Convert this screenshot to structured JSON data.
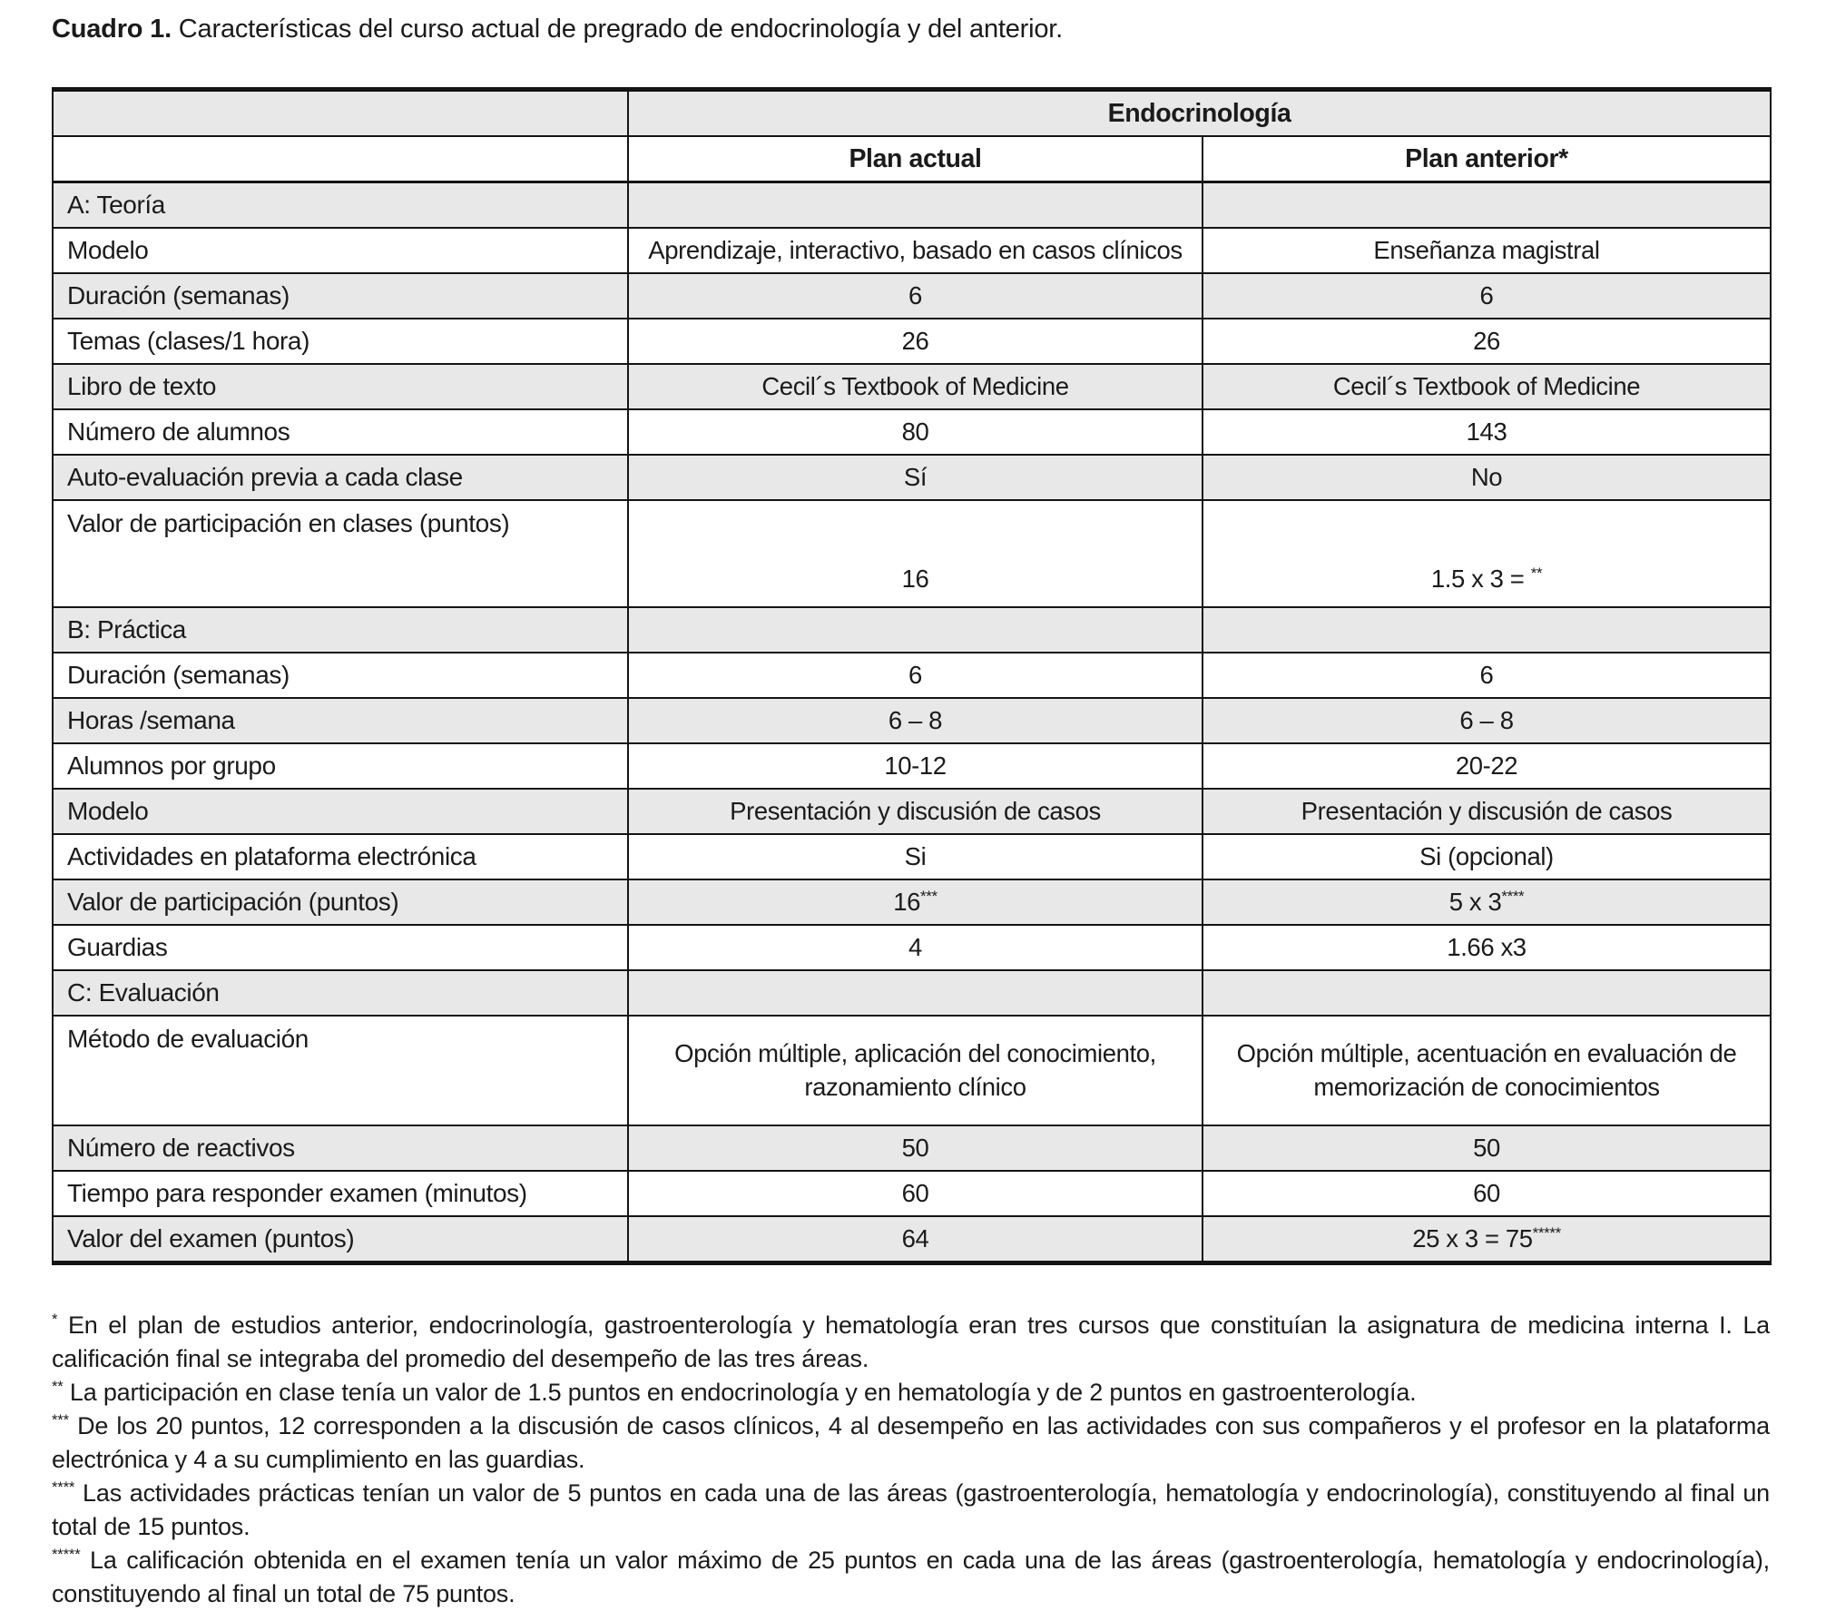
{
  "title": {
    "prefix": "Cuadro 1.",
    "text": " Características del curso actual de pregrado de endocrinología y del anterior."
  },
  "table": {
    "group_header": "Endocrinología",
    "columns": {
      "actual_label": "Plan actual",
      "anterior_label": "Plan anterior*"
    },
    "rows": [
      {
        "kind": "section",
        "label": "A: Teoría"
      },
      {
        "kind": "row",
        "label": "Modelo",
        "actual": {
          "text": "Aprendizaje, interactivo, basado en casos clínicos"
        },
        "anterior": {
          "text": "Enseñanza magistral"
        }
      },
      {
        "kind": "row",
        "label": "Duración (semanas)",
        "actual": {
          "text": "6"
        },
        "anterior": {
          "text": "6"
        }
      },
      {
        "kind": "row",
        "label": "Temas (clases/1 hora)",
        "actual": {
          "text": "26"
        },
        "anterior": {
          "text": "26"
        }
      },
      {
        "kind": "row",
        "label": "Libro de texto",
        "actual": {
          "text": "Cecil´s Textbook of Medicine"
        },
        "anterior": {
          "text": "Cecil´s Textbook of Medicine"
        }
      },
      {
        "kind": "row",
        "label": "Número de alumnos",
        "actual": {
          "text": "80"
        },
        "anterior": {
          "text": "143"
        }
      },
      {
        "kind": "row",
        "label": "Auto-evaluación previa a cada clase",
        "actual": {
          "text": "Sí"
        },
        "anterior": {
          "text": "No"
        }
      },
      {
        "kind": "row",
        "variant": "tall-bottom",
        "label": "Valor de participación en clases (puntos)",
        "actual": {
          "text": "16"
        },
        "anterior": {
          "text": "1.5 x 3 = ",
          "sup": "**"
        }
      },
      {
        "kind": "section",
        "label": "B: Práctica"
      },
      {
        "kind": "row",
        "label": "Duración (semanas)",
        "actual": {
          "text": "6"
        },
        "anterior": {
          "text": "6"
        }
      },
      {
        "kind": "row",
        "label": "Horas /semana",
        "actual": {
          "text": "6 – 8"
        },
        "anterior": {
          "text": "6 – 8"
        }
      },
      {
        "kind": "row",
        "label": "Alumnos por grupo",
        "actual": {
          "text": "10-12"
        },
        "anterior": {
          "text": "20-22"
        }
      },
      {
        "kind": "row",
        "label": "Modelo",
        "actual": {
          "text": "Presentación y discusión de casos"
        },
        "anterior": {
          "text": "Presentación y discusión de casos"
        }
      },
      {
        "kind": "row",
        "label": "Actividades en plataforma electrónica",
        "actual": {
          "text": "Si"
        },
        "anterior": {
          "text": "Si (opcional)"
        }
      },
      {
        "kind": "row",
        "label": "Valor de participación (puntos)",
        "actual": {
          "text": "16",
          "sup": "***"
        },
        "anterior": {
          "text": "5 x 3",
          "sup": "****"
        }
      },
      {
        "kind": "row",
        "label": "Guardias",
        "actual": {
          "text": "4"
        },
        "anterior": {
          "text": "1.66 x3"
        }
      },
      {
        "kind": "section",
        "label": "C: Evaluación"
      },
      {
        "kind": "row",
        "variant": "tall-middle",
        "label": "Método de evaluación",
        "actual": {
          "text": "Opción múltiple, aplicación del conocimiento,\nrazonamiento clínico"
        },
        "anterior": {
          "text": "Opción múltiple, acentuación en evaluación de\nmemorización de conocimientos"
        }
      },
      {
        "kind": "row",
        "label": "Número de reactivos",
        "actual": {
          "text": "50"
        },
        "anterior": {
          "text": "50"
        }
      },
      {
        "kind": "row",
        "label": "Tiempo para responder examen (minutos)",
        "actual": {
          "text": "60"
        },
        "anterior": {
          "text": "60"
        }
      },
      {
        "kind": "row",
        "variant": "last",
        "label": "Valor del examen (puntos)",
        "actual": {
          "text": "64"
        },
        "anterior": {
          "text": "25 x 3 = 75",
          "sup": "*****"
        }
      }
    ]
  },
  "footnotes": [
    {
      "marker": "*",
      "text": " En el plan de estudios anterior, endocrinología, gastroenterología y hematología eran tres cursos que constituían la asignatura de medicina interna I. La calificación final se integraba del promedio del desempeño de las tres áreas."
    },
    {
      "marker": "**",
      "text": " La participación en clase tenía un valor de 1.5 puntos en endocrinología y en hematología y de 2 puntos en gastroenterología."
    },
    {
      "marker": "***",
      "text": " De los 20 puntos, 12 corresponden a la discusión de casos clínicos, 4 al desempeño en las actividades con sus compañeros y el profesor en la plataforma electrónica y 4 a su cumplimiento en las guardias."
    },
    {
      "marker": "****",
      "text": " Las actividades prácticas tenían un valor de 5 puntos en cada una de las áreas (gastroenterología, hematología y endocrinología), constituyendo al final un total de 15 puntos."
    },
    {
      "marker": "*****",
      "text": " La calificación obtenida en el examen tenía un valor máximo de 25 puntos en cada una de las áreas (gastroenterología, hematología y endocrinología), constituyendo al final un total de 75 puntos."
    }
  ],
  "colors": {
    "row_shade": "#e8e8e9",
    "border": "#141414",
    "text": "#1b1b1b",
    "background": "#ffffff"
  }
}
